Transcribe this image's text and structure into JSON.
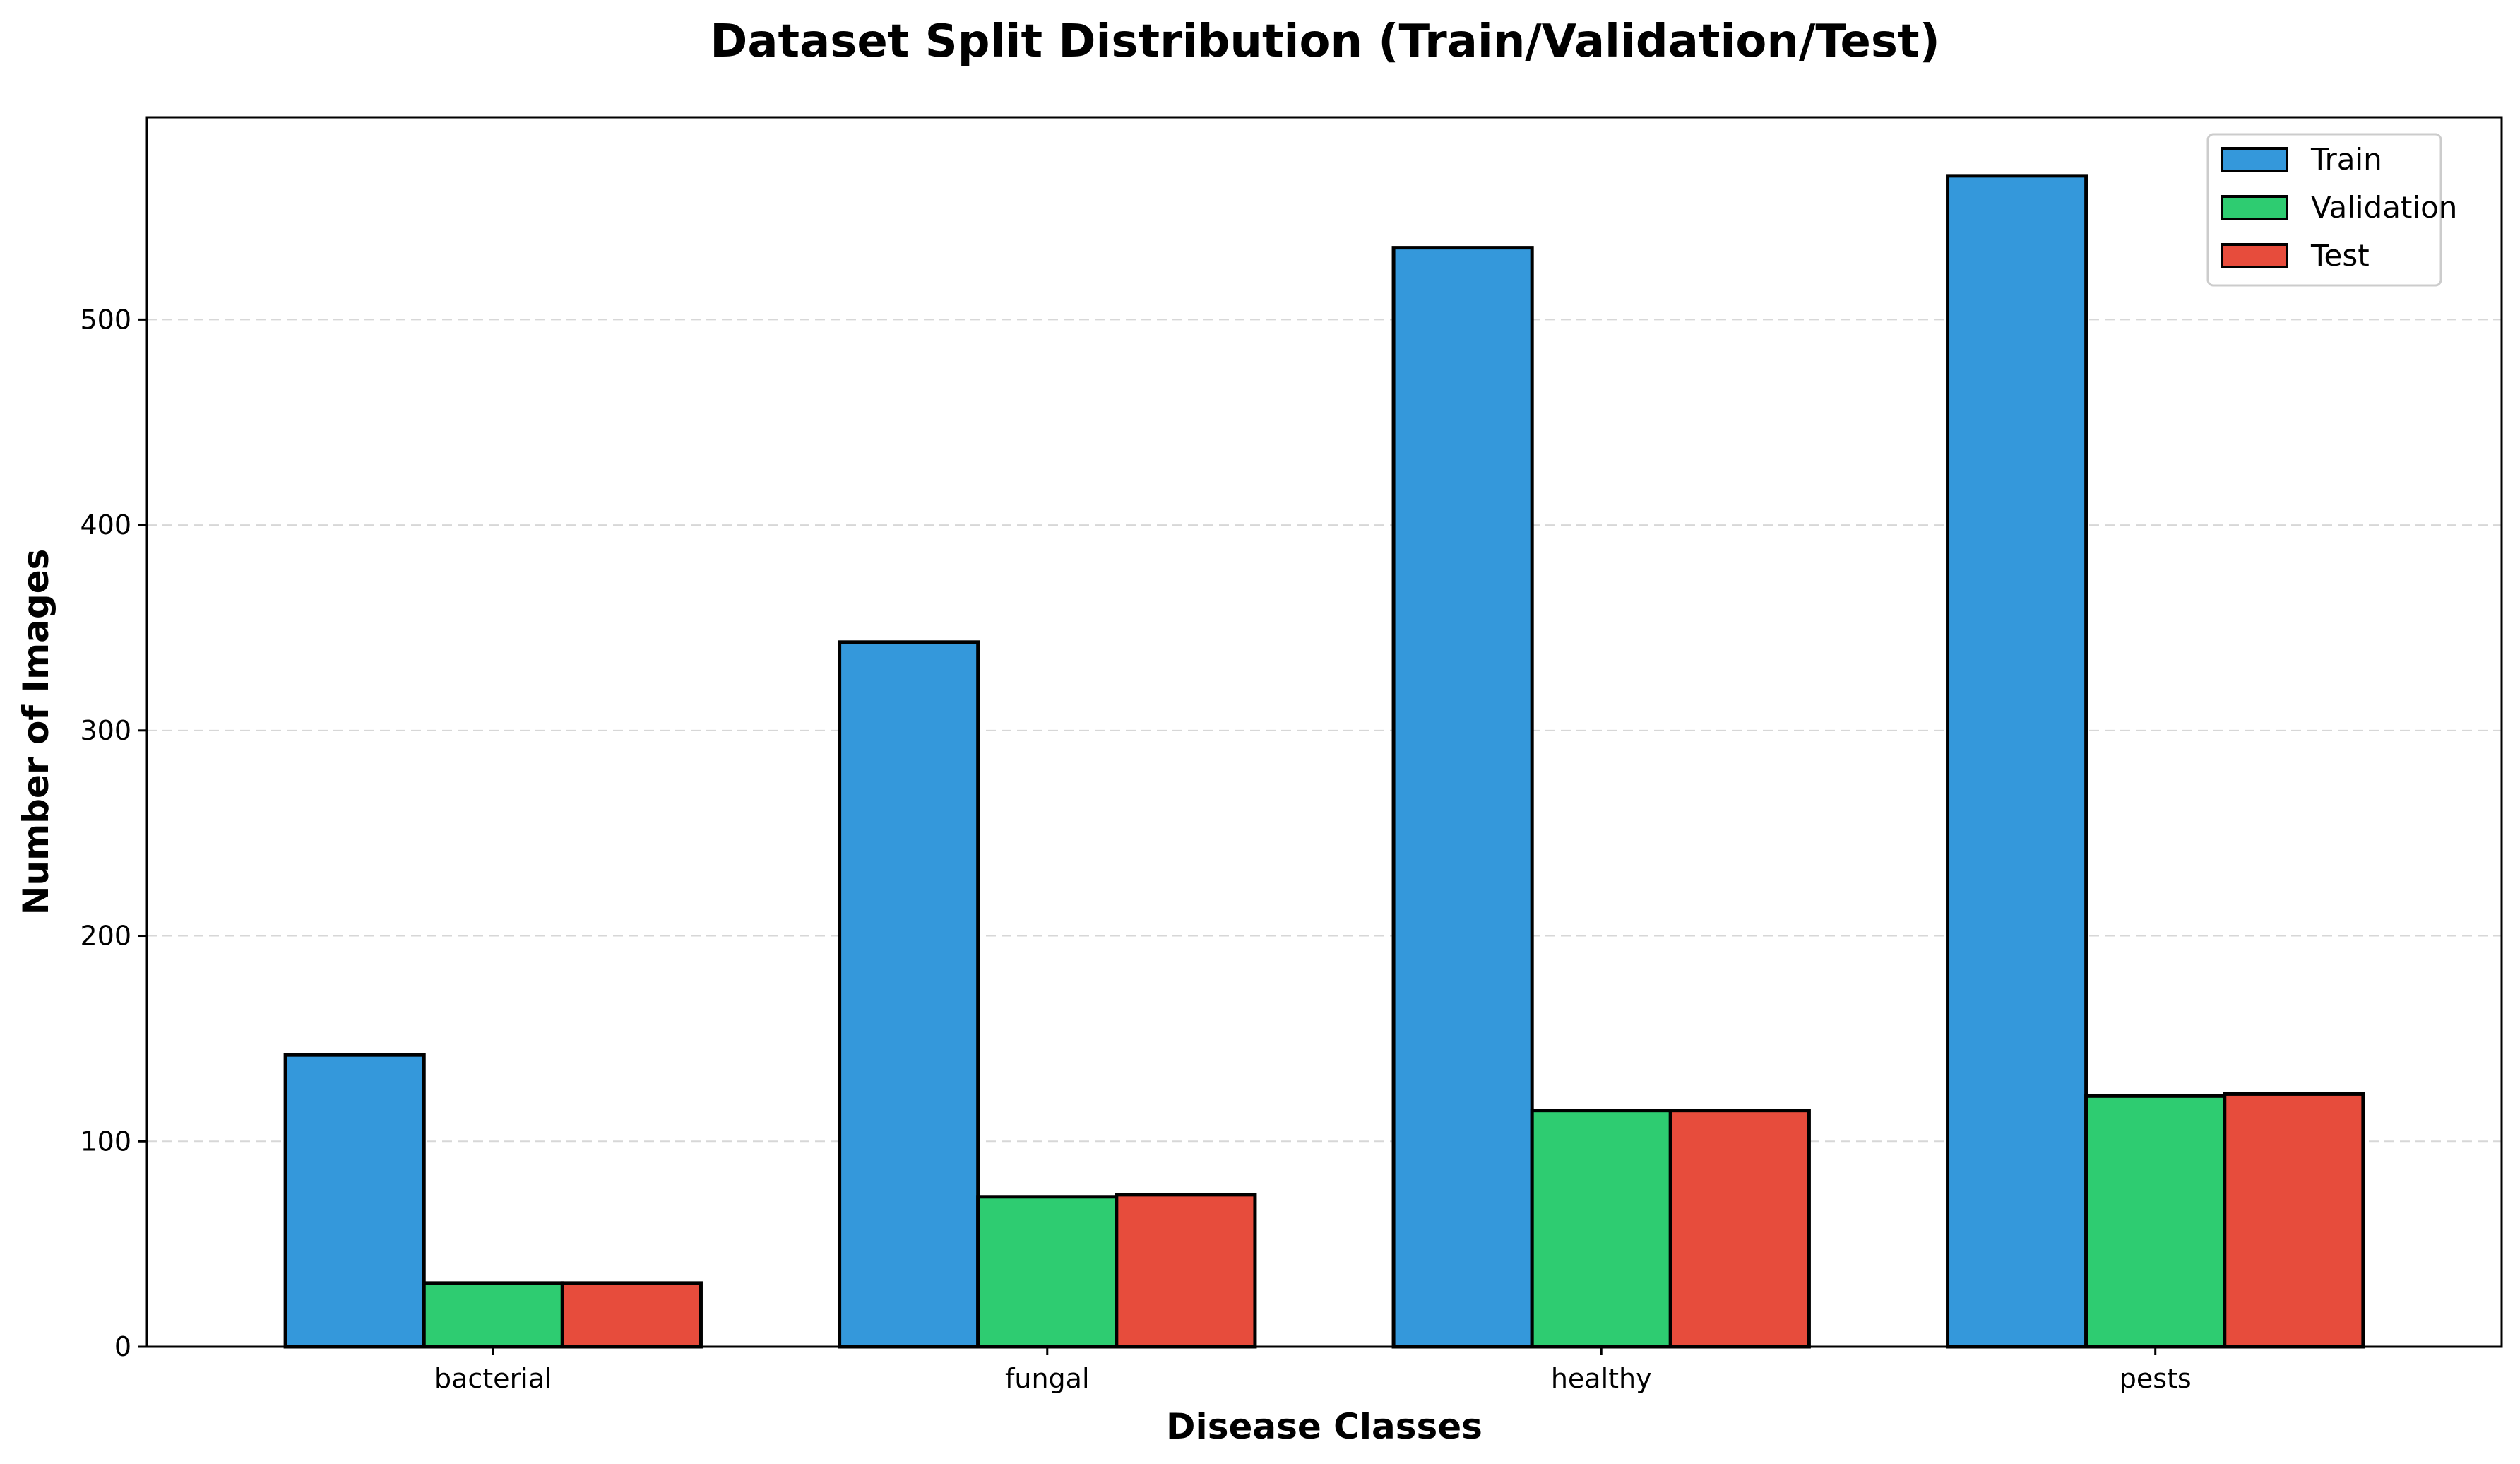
{
  "chart_data": {
    "type": "bar",
    "title": "Dataset Split Distribution (Train/Validation/Test)",
    "xlabel": "Disease Classes",
    "ylabel": "Number of Images",
    "categories": [
      "bacterial",
      "fungal",
      "healthy",
      "pests"
    ],
    "series": [
      {
        "name": "Train",
        "color": "#3498db",
        "values": [
          142,
          343,
          535,
          570
        ]
      },
      {
        "name": "Validation",
        "color": "#2ecc71",
        "values": [
          31,
          73,
          115,
          122
        ]
      },
      {
        "name": "Test",
        "color": "#e74c3c",
        "values": [
          31,
          74,
          115,
          123
        ]
      }
    ],
    "ylim": [
      0,
      598.5
    ],
    "yticks": [
      "0",
      "100",
      "200",
      "300",
      "400",
      "500"
    ],
    "grid": true,
    "legend_position": "top-right"
  }
}
